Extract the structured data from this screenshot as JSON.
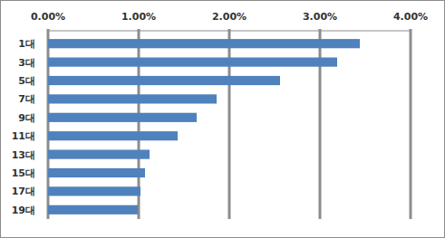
{
  "chart_data": {
    "type": "bar",
    "orientation": "horizontal",
    "categories": [
      "1대",
      "3대",
      "5대",
      "7대",
      "9대",
      "11대",
      "13대",
      "15대",
      "17대",
      "19대"
    ],
    "values": [
      3.44,
      3.19,
      2.56,
      1.86,
      1.64,
      1.43,
      1.12,
      1.07,
      1.02,
      0.99
    ],
    "color": "#4f81bd",
    "xlim": [
      0,
      4
    ],
    "xticks": [
      {
        "value": 0,
        "label": "0.00%"
      },
      {
        "value": 1,
        "label": "1.00%"
      },
      {
        "value": 2,
        "label": "2.00%"
      },
      {
        "value": 3,
        "label": "3.00%"
      },
      {
        "value": 4,
        "label": "4.00%"
      }
    ],
    "grid": true
  }
}
